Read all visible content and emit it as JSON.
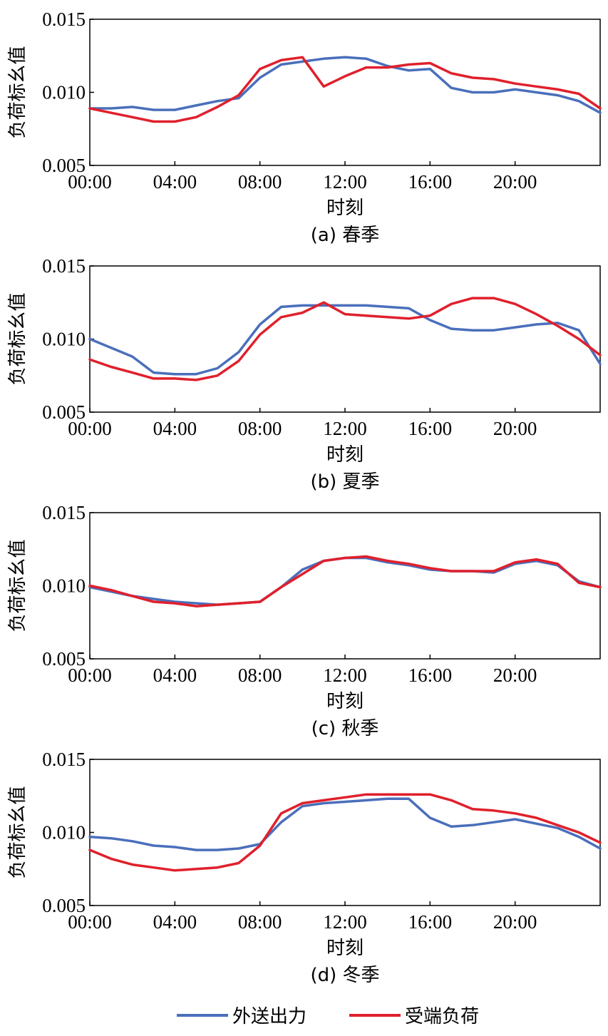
{
  "colors": {
    "export": "#4a6fbb",
    "load": "#e0202c",
    "axis": "#000000"
  },
  "legend": {
    "export_label": "外送出力",
    "load_label": "受端负荷"
  },
  "chart_data": [
    {
      "type": "line",
      "caption": "(a) 春季",
      "xlabel": "时刻",
      "ylabel": "负荷标幺值",
      "ylim": [
        0.005,
        0.015
      ],
      "yticks": [
        "0.005",
        "0.010",
        "0.015"
      ],
      "xlim": [
        0,
        24
      ],
      "xtick_values": [
        0,
        4,
        8,
        12,
        16,
        20
      ],
      "xticks": [
        "00:00",
        "04:00",
        "08:00",
        "12:00",
        "16:00",
        "20:00"
      ],
      "x": [
        0,
        1,
        2,
        3,
        4,
        5,
        6,
        7,
        8,
        9,
        10,
        11,
        12,
        13,
        14,
        15,
        16,
        17,
        18,
        19,
        20,
        21,
        22,
        23,
        24
      ],
      "series": [
        {
          "name": "外送出力",
          "values": [
            0.0089,
            0.0089,
            0.009,
            0.0088,
            0.0088,
            0.0091,
            0.0094,
            0.0096,
            0.011,
            0.0119,
            0.0121,
            0.0123,
            0.0124,
            0.0123,
            0.0118,
            0.0115,
            0.0116,
            0.0103,
            0.01,
            0.01,
            0.0102,
            0.01,
            0.0098,
            0.0094,
            0.0086
          ]
        },
        {
          "name": "受端负荷",
          "values": [
            0.0089,
            0.0086,
            0.0083,
            0.008,
            0.008,
            0.0083,
            0.009,
            0.0098,
            0.0116,
            0.0122,
            0.0124,
            0.0104,
            0.0111,
            0.0117,
            0.0117,
            0.0119,
            0.012,
            0.0113,
            0.011,
            0.0109,
            0.0106,
            0.0104,
            0.0102,
            0.0099,
            0.0089
          ]
        }
      ]
    },
    {
      "type": "line",
      "caption": "(b) 夏季",
      "xlabel": "时刻",
      "ylabel": "负荷标幺值",
      "ylim": [
        0.005,
        0.015
      ],
      "yticks": [
        "0.005",
        "0.010",
        "0.015"
      ],
      "xlim": [
        0,
        24
      ],
      "xtick_values": [
        0,
        4,
        8,
        12,
        16,
        20
      ],
      "xticks": [
        "00:00",
        "04:00",
        "08:00",
        "12:00",
        "16:00",
        "20:00"
      ],
      "x": [
        0,
        1,
        2,
        3,
        4,
        5,
        6,
        7,
        8,
        9,
        10,
        11,
        12,
        13,
        14,
        15,
        16,
        17,
        18,
        19,
        20,
        21,
        22,
        23,
        24
      ],
      "series": [
        {
          "name": "外送出力",
          "values": [
            0.01,
            0.0094,
            0.0088,
            0.0077,
            0.0076,
            0.0076,
            0.008,
            0.0091,
            0.011,
            0.0122,
            0.0123,
            0.0123,
            0.0123,
            0.0123,
            0.0122,
            0.0121,
            0.0113,
            0.0107,
            0.0106,
            0.0106,
            0.0108,
            0.011,
            0.0111,
            0.0106,
            0.0083
          ]
        },
        {
          "name": "受端负荷",
          "values": [
            0.0086,
            0.0081,
            0.0077,
            0.0073,
            0.0073,
            0.0072,
            0.0075,
            0.0085,
            0.0103,
            0.0115,
            0.0118,
            0.0125,
            0.0117,
            0.0116,
            0.0115,
            0.0114,
            0.0116,
            0.0124,
            0.0128,
            0.0128,
            0.0124,
            0.0117,
            0.0109,
            0.01,
            0.0089
          ]
        }
      ]
    },
    {
      "type": "line",
      "caption": "(c) 秋季",
      "xlabel": "时刻",
      "ylabel": "负荷标幺值",
      "ylim": [
        0.005,
        0.015
      ],
      "yticks": [
        "0.005",
        "0.010",
        "0.015"
      ],
      "xlim": [
        0,
        24
      ],
      "xtick_values": [
        0,
        4,
        8,
        12,
        16,
        20
      ],
      "xticks": [
        "00:00",
        "04:00",
        "08:00",
        "12:00",
        "16:00",
        "20:00"
      ],
      "x": [
        0,
        1,
        2,
        3,
        4,
        5,
        6,
        7,
        8,
        9,
        10,
        11,
        12,
        13,
        14,
        15,
        16,
        17,
        18,
        19,
        20,
        21,
        22,
        23,
        24
      ],
      "series": [
        {
          "name": "外送出力",
          "values": [
            0.0099,
            0.0096,
            0.0093,
            0.0091,
            0.0089,
            0.0088,
            0.0087,
            0.0088,
            0.0089,
            0.0099,
            0.0111,
            0.0117,
            0.0119,
            0.0119,
            0.0116,
            0.0114,
            0.0111,
            0.011,
            0.011,
            0.0109,
            0.0115,
            0.0117,
            0.0114,
            0.0103,
            0.0099
          ]
        },
        {
          "name": "受端负荷",
          "values": [
            0.01,
            0.0097,
            0.0093,
            0.0089,
            0.0088,
            0.0086,
            0.0087,
            0.0088,
            0.0089,
            0.0099,
            0.0108,
            0.0117,
            0.0119,
            0.012,
            0.0117,
            0.0115,
            0.0112,
            0.011,
            0.011,
            0.011,
            0.0116,
            0.0118,
            0.0115,
            0.0102,
            0.0099
          ]
        }
      ]
    },
    {
      "type": "line",
      "caption": "(d) 冬季",
      "xlabel": "时刻",
      "ylabel": "负荷标幺值",
      "ylim": [
        0.005,
        0.015
      ],
      "yticks": [
        "0.005",
        "0.010",
        "0.015"
      ],
      "xlim": [
        0,
        24
      ],
      "xtick_values": [
        0,
        4,
        8,
        12,
        16,
        20
      ],
      "xticks": [
        "00:00",
        "04:00",
        "08:00",
        "12:00",
        "16:00",
        "20:00"
      ],
      "x": [
        0,
        1,
        2,
        3,
        4,
        5,
        6,
        7,
        8,
        9,
        10,
        11,
        12,
        13,
        14,
        15,
        16,
        17,
        18,
        19,
        20,
        21,
        22,
        23,
        24
      ],
      "series": [
        {
          "name": "外送出力",
          "values": [
            0.0097,
            0.0096,
            0.0094,
            0.0091,
            0.009,
            0.0088,
            0.0088,
            0.0089,
            0.0092,
            0.0107,
            0.0118,
            0.012,
            0.0121,
            0.0122,
            0.0123,
            0.0123,
            0.011,
            0.0104,
            0.0105,
            0.0107,
            0.0109,
            0.0106,
            0.0103,
            0.0097,
            0.0089
          ]
        },
        {
          "name": "受端负荷",
          "values": [
            0.0088,
            0.0082,
            0.0078,
            0.0076,
            0.0074,
            0.0075,
            0.0076,
            0.0079,
            0.0091,
            0.0113,
            0.012,
            0.0122,
            0.0124,
            0.0126,
            0.0126,
            0.0126,
            0.0126,
            0.0122,
            0.0116,
            0.0115,
            0.0113,
            0.011,
            0.0105,
            0.01,
            0.0093
          ]
        }
      ]
    }
  ]
}
